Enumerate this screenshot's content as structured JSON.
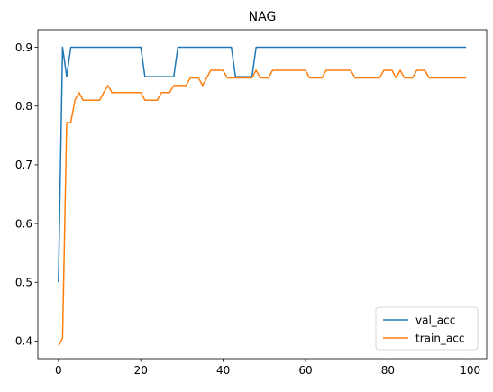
{
  "chart_data": {
    "type": "line",
    "title": "NAG",
    "xlabel": "",
    "ylabel": "",
    "xlim": [
      -5,
      104
    ],
    "ylim": [
      0.37,
      0.93
    ],
    "xticks": [
      0,
      20,
      40,
      60,
      80,
      100
    ],
    "yticks": [
      0.4,
      0.5,
      0.6,
      0.7,
      0.8,
      0.9
    ],
    "xtick_labels": [
      "0",
      "20",
      "40",
      "60",
      "80",
      "100"
    ],
    "ytick_labels": [
      "0.4",
      "0.5",
      "0.6",
      "0.7",
      "0.8",
      "0.9"
    ],
    "grid": false,
    "legend_position": "lower-right",
    "series": [
      {
        "name": "val_acc",
        "color": "#1f77b4",
        "points": [
          [
            0,
            0.5
          ],
          [
            1,
            0.9
          ],
          [
            2,
            0.85
          ],
          [
            3,
            0.9
          ],
          [
            20,
            0.9
          ],
          [
            21,
            0.85
          ],
          [
            28,
            0.85
          ],
          [
            29,
            0.9
          ],
          [
            42,
            0.9
          ],
          [
            43,
            0.85
          ],
          [
            47,
            0.85
          ],
          [
            48,
            0.9
          ],
          [
            99,
            0.9
          ]
        ]
      },
      {
        "name": "train_acc",
        "color": "#ff7f0e",
        "points": [
          [
            0,
            0.392
          ],
          [
            1,
            0.405
          ],
          [
            2,
            0.772
          ],
          [
            3,
            0.772
          ],
          [
            4,
            0.81
          ],
          [
            5,
            0.823
          ],
          [
            6,
            0.81
          ],
          [
            10,
            0.81
          ],
          [
            11,
            0.823
          ],
          [
            12,
            0.835
          ],
          [
            13,
            0.823
          ],
          [
            20,
            0.823
          ],
          [
            21,
            0.81
          ],
          [
            24,
            0.81
          ],
          [
            25,
            0.823
          ],
          [
            27,
            0.823
          ],
          [
            28,
            0.835
          ],
          [
            31,
            0.835
          ],
          [
            32,
            0.848
          ],
          [
            34,
            0.848
          ],
          [
            35,
            0.835
          ],
          [
            36,
            0.848
          ],
          [
            37,
            0.861
          ],
          [
            40,
            0.861
          ],
          [
            41,
            0.848
          ],
          [
            47,
            0.848
          ],
          [
            48,
            0.861
          ],
          [
            49,
            0.848
          ],
          [
            51,
            0.848
          ],
          [
            52,
            0.861
          ],
          [
            60,
            0.861
          ],
          [
            61,
            0.848
          ],
          [
            64,
            0.848
          ],
          [
            65,
            0.861
          ],
          [
            71,
            0.861
          ],
          [
            72,
            0.848
          ],
          [
            78,
            0.848
          ],
          [
            79,
            0.861
          ],
          [
            81,
            0.861
          ],
          [
            82,
            0.848
          ],
          [
            83,
            0.861
          ],
          [
            84,
            0.848
          ],
          [
            86,
            0.848
          ],
          [
            87,
            0.861
          ],
          [
            89,
            0.861
          ],
          [
            90,
            0.848
          ],
          [
            99,
            0.848
          ]
        ]
      }
    ]
  }
}
